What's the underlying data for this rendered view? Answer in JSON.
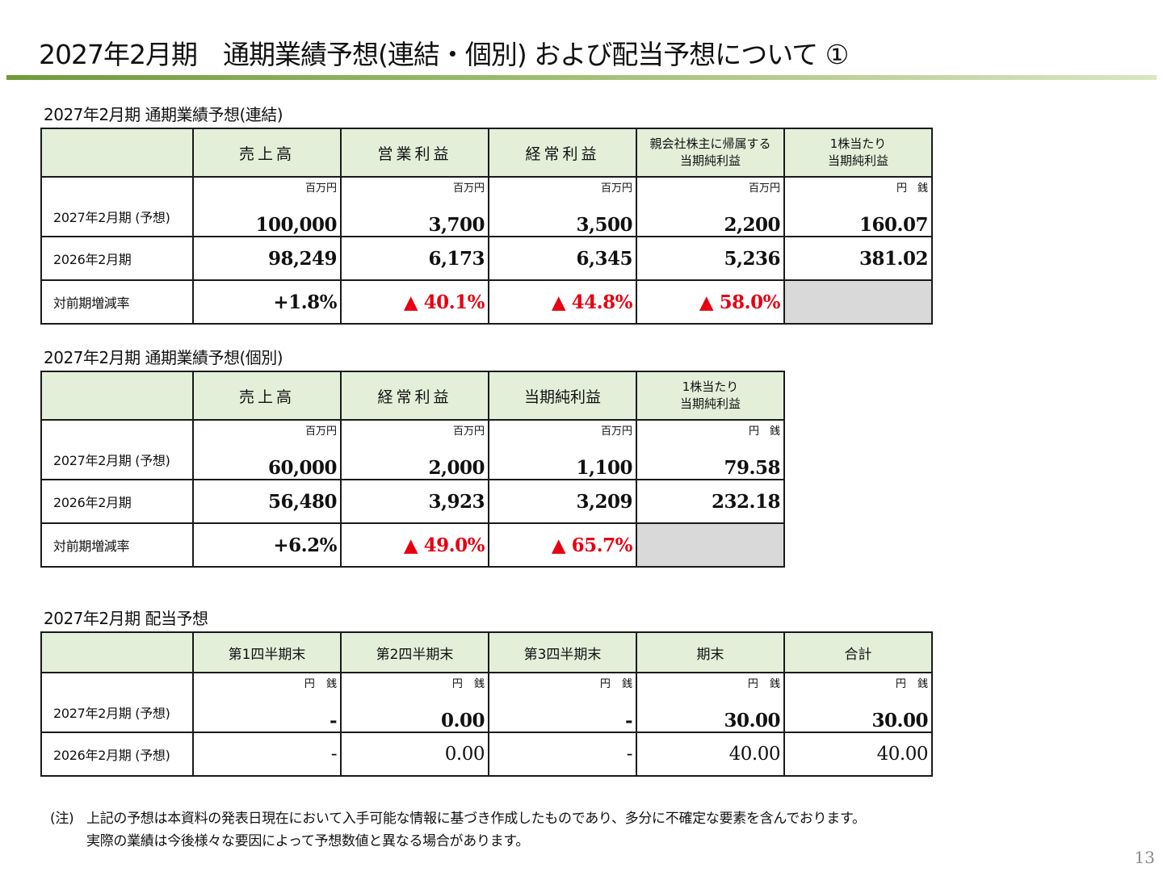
{
  "title": "2027年2月期　通期業績予想(連結・個別) および配当予想について ①",
  "consolidated": {
    "section_title": "2027年2月期 通期業績予想(連結)",
    "headers": [
      "売上高",
      "営業利益",
      "経常利益",
      "親会社株主に帰属する\n当期純利益",
      "1株当たり\n当期純利益"
    ],
    "units": [
      "百万円",
      "百万円",
      "百万円",
      "百万円",
      "円　銭"
    ],
    "rows": [
      {
        "label": "2027年2月期 (予想)",
        "values": [
          "100,000",
          "3,700",
          "3,500",
          "2,200",
          "160.07"
        ]
      },
      {
        "label": "2026年2月期",
        "values": [
          "98,249",
          "6,173",
          "6,345",
          "5,236",
          "381.02"
        ]
      },
      {
        "label": "対前期増減率",
        "values": [
          "+1.8%",
          "▲ 40.1%",
          "▲ 44.8%",
          "▲ 58.0%",
          ""
        ]
      }
    ]
  },
  "nonconsolidated": {
    "section_title": "2027年2月期 通期業績予想(個別)",
    "headers": [
      "売上高",
      "経常利益",
      "当期純利益",
      "1株当たり\n当期純利益"
    ],
    "units": [
      "百万円",
      "百万円",
      "百万円",
      "円　銭"
    ],
    "rows": [
      {
        "label": "2027年2月期 (予想)",
        "values": [
          "60,000",
          "2,000",
          "1,100",
          "79.58"
        ]
      },
      {
        "label": "2026年2月期",
        "values": [
          "56,480",
          "3,923",
          "3,209",
          "232.18"
        ]
      },
      {
        "label": "対前期増減率",
        "values": [
          "+6.2%",
          "▲ 49.0%",
          "▲ 65.7%",
          ""
        ]
      }
    ]
  },
  "dividend": {
    "section_title": "2027年2月期 配当予想",
    "headers": [
      "第1四半期末",
      "第2四半期末",
      "第3四半期末",
      "期末",
      "合計"
    ],
    "units": [
      "円 銭",
      "円 銭",
      "円 銭",
      "円 銭",
      "円 銭"
    ],
    "rows": [
      {
        "label": "2027年2月期 (予想)",
        "values": [
          "-",
          "0.00",
          "-",
          "30.00",
          "30.00"
        ]
      },
      {
        "label": "2026年2月期 (予想)",
        "values": [
          "-",
          "0.00",
          "-",
          "40.00",
          "40.00"
        ]
      }
    ]
  },
  "note": {
    "label": "(注)",
    "line1": "上記の予想は本資料の発表日現在において入手可能な情報に基づき作成したものであり、多分に不確定な要素を含んでおります。",
    "line2": "実際の業績は今後様々な要因によって予想数値と異なる場合があります。"
  },
  "page_number": "13",
  "colors": {
    "header_bg": "#e3efd9",
    "negative": "#e60012",
    "empty_cell": "#d9d9d9",
    "rule": "#6f9a3a"
  }
}
